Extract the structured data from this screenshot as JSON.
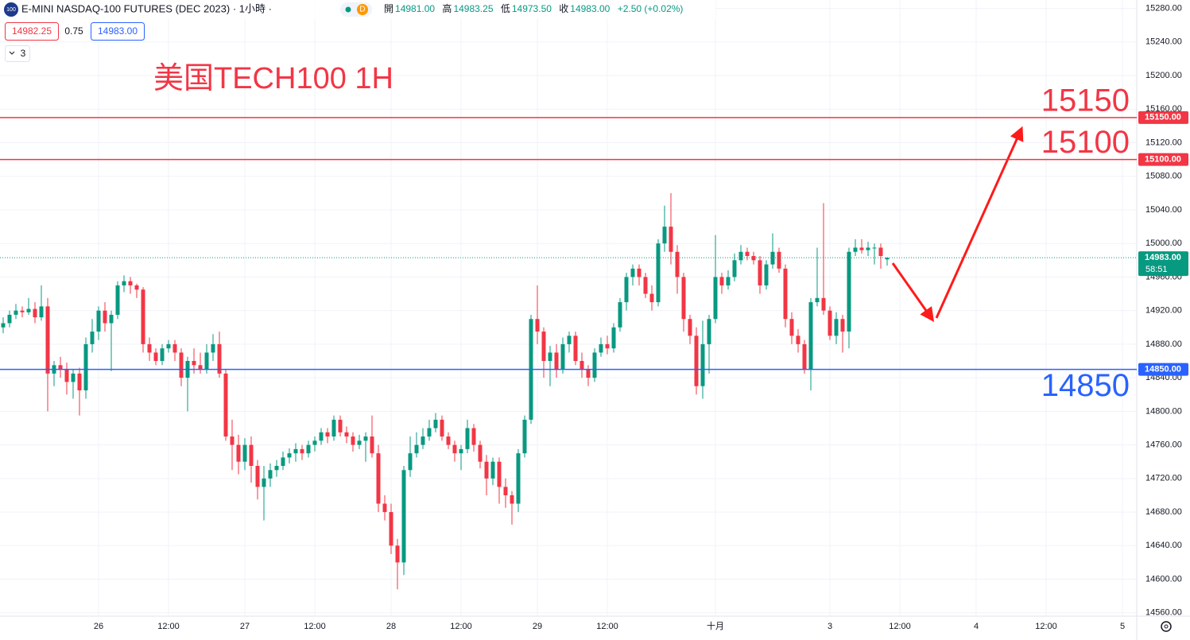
{
  "toolbar": {
    "icon": "100",
    "title": "E-MINI NASDAQ-100 FUTURES (DEC 2023) · 1小時 ·",
    "badge": "D",
    "ohlc": [
      {
        "label": "開",
        "value": "14981.00"
      },
      {
        "label": "高",
        "value": "14983.25"
      },
      {
        "label": "低",
        "value": "14973.50"
      },
      {
        "label": "收",
        "value": "14983.00"
      }
    ],
    "change": "+2.50 (+0.02%)",
    "bid": "14982.25",
    "spread": "0.75",
    "ask": "14983.00",
    "indicators": "3"
  },
  "chart_data": {
    "type": "candlestick",
    "title": "美国TECH100 1H",
    "up_color": "#089981",
    "down_color": "#f23645",
    "grid": true,
    "xlim": [
      -0.5,
      178.25
    ],
    "ylim": [
      14556,
      15290
    ],
    "xticks": [
      {
        "value": 15,
        "label": "26"
      },
      {
        "value": 26,
        "label": "12:00"
      },
      {
        "value": 38,
        "label": "27"
      },
      {
        "value": 49,
        "label": "12:00"
      },
      {
        "value": 61,
        "label": "28"
      },
      {
        "value": 72,
        "label": "12:00"
      },
      {
        "value": 84,
        "label": "29"
      },
      {
        "value": 95,
        "label": "12:00"
      },
      {
        "value": 112,
        "label": "十月"
      },
      {
        "value": 130,
        "label": "3"
      },
      {
        "value": 141,
        "label": "12:00"
      },
      {
        "value": 153,
        "label": "4"
      },
      {
        "value": 164,
        "label": "12:00"
      },
      {
        "value": 176,
        "label": "5"
      }
    ],
    "yticks": [
      {
        "value": 14560,
        "label": "14560.00"
      },
      {
        "value": 14600,
        "label": "14600.00"
      },
      {
        "value": 14640,
        "label": "14640.00"
      },
      {
        "value": 14680,
        "label": "14680.00"
      },
      {
        "value": 14720,
        "label": "14720.00"
      },
      {
        "value": 14760,
        "label": "14760.00"
      },
      {
        "value": 14800,
        "label": "14800.00"
      },
      {
        "value": 14840,
        "label": "14840.00"
      },
      {
        "value": 14880,
        "label": "14880.00"
      },
      {
        "value": 14920,
        "label": "14920.00"
      },
      {
        "value": 14960,
        "label": "14960.00"
      },
      {
        "value": 15000,
        "label": "15000.00"
      },
      {
        "value": 15040,
        "label": "15040.00"
      },
      {
        "value": 15080,
        "label": "15080.00"
      },
      {
        "value": 15120,
        "label": "15120.00"
      },
      {
        "value": 15160,
        "label": "15160.00"
      },
      {
        "value": 15200,
        "label": "15200.00"
      },
      {
        "value": 15240,
        "label": "15240.00"
      },
      {
        "value": 15280,
        "label": "15280.00"
      }
    ],
    "hlines": [
      {
        "value": 15150,
        "label": "15150",
        "axis_label": "15150.00",
        "color": "#f23645"
      },
      {
        "value": 15100,
        "label": "15100",
        "axis_label": "15100.00",
        "color": "#f23645"
      },
      {
        "value": 14850,
        "label": "14850",
        "axis_label": "14850.00",
        "color": "#2962ff"
      }
    ],
    "last_price": {
      "value": 14983,
      "label": "14983.00",
      "countdown": "58:51",
      "color": "#089981"
    },
    "ohlc": [
      [
        14900,
        14912,
        14893,
        14905
      ],
      [
        14905,
        14920,
        14900,
        14915
      ],
      [
        14915,
        14928,
        14910,
        14920
      ],
      [
        14920,
        14925,
        14912,
        14918
      ],
      [
        14918,
        14935,
        14915,
        14922
      ],
      [
        14922,
        14930,
        14905,
        14912
      ],
      [
        14912,
        14950,
        14908,
        14925
      ],
      [
        14925,
        14935,
        14800,
        14845
      ],
      [
        14845,
        14860,
        14830,
        14855
      ],
      [
        14855,
        14865,
        14840,
        14850
      ],
      [
        14850,
        14858,
        14820,
        14835
      ],
      [
        14835,
        14850,
        14815,
        14845
      ],
      [
        14845,
        14852,
        14795,
        14825
      ],
      [
        14825,
        14888,
        14815,
        14880
      ],
      [
        14880,
        14910,
        14870,
        14895
      ],
      [
        14895,
        14925,
        14885,
        14920
      ],
      [
        14920,
        14930,
        14895,
        14905
      ],
      [
        14905,
        14920,
        14848,
        14915
      ],
      [
        14915,
        14955,
        14910,
        14950
      ],
      [
        14950,
        14962,
        14942,
        14955
      ],
      [
        14955,
        14960,
        14940,
        14950
      ],
      [
        14950,
        14952,
        14935,
        14945
      ],
      [
        14945,
        14948,
        14870,
        14880
      ],
      [
        14880,
        14888,
        14860,
        14870
      ],
      [
        14870,
        14875,
        14855,
        14860
      ],
      [
        14860,
        14880,
        14855,
        14875
      ],
      [
        14875,
        14885,
        14870,
        14880
      ],
      [
        14880,
        14885,
        14860,
        14870
      ],
      [
        14870,
        14875,
        14830,
        14840
      ],
      [
        14840,
        14865,
        14800,
        14860
      ],
      [
        14860,
        14875,
        14845,
        14855
      ],
      [
        14855,
        14870,
        14845,
        14850
      ],
      [
        14850,
        14880,
        14845,
        14870
      ],
      [
        14870,
        14892,
        14860,
        14880
      ],
      [
        14880,
        14895,
        14840,
        14845
      ],
      [
        14845,
        14850,
        14765,
        14770
      ],
      [
        14770,
        14790,
        14730,
        14760
      ],
      [
        14760,
        14772,
        14725,
        14740
      ],
      [
        14740,
        14768,
        14730,
        14760
      ],
      [
        14760,
        14770,
        14715,
        14735
      ],
      [
        14735,
        14742,
        14695,
        14710
      ],
      [
        14710,
        14735,
        14670,
        14720
      ],
      [
        14720,
        14738,
        14710,
        14730
      ],
      [
        14730,
        14742,
        14722,
        14735
      ],
      [
        14735,
        14752,
        14730,
        14745
      ],
      [
        14745,
        14756,
        14738,
        14750
      ],
      [
        14750,
        14762,
        14740,
        14755
      ],
      [
        14755,
        14760,
        14742,
        14750
      ],
      [
        14750,
        14765,
        14745,
        14760
      ],
      [
        14760,
        14770,
        14752,
        14765
      ],
      [
        14765,
        14780,
        14760,
        14775
      ],
      [
        14775,
        14780,
        14762,
        14770
      ],
      [
        14770,
        14795,
        14765,
        14790
      ],
      [
        14790,
        14795,
        14770,
        14775
      ],
      [
        14775,
        14782,
        14762,
        14770
      ],
      [
        14770,
        14775,
        14752,
        14760
      ],
      [
        14760,
        14772,
        14755,
        14765
      ],
      [
        14765,
        14775,
        14740,
        14770
      ],
      [
        14770,
        14795,
        14745,
        14750
      ],
      [
        14750,
        14760,
        14680,
        14690
      ],
      [
        14690,
        14700,
        14670,
        14680
      ],
      [
        14680,
        14690,
        14630,
        14640
      ],
      [
        14640,
        14648,
        14588,
        14620
      ],
      [
        14620,
        14735,
        14605,
        14730
      ],
      [
        14730,
        14770,
        14722,
        14750
      ],
      [
        14750,
        14775,
        14745,
        14760
      ],
      [
        14760,
        14780,
        14755,
        14770
      ],
      [
        14770,
        14790,
        14765,
        14780
      ],
      [
        14780,
        14798,
        14775,
        14790
      ],
      [
        14790,
        14795,
        14765,
        14770
      ],
      [
        14770,
        14775,
        14755,
        14760
      ],
      [
        14760,
        14765,
        14740,
        14750
      ],
      [
        14750,
        14760,
        14730,
        14755
      ],
      [
        14755,
        14790,
        14750,
        14780
      ],
      [
        14780,
        14785,
        14752,
        14760
      ],
      [
        14760,
        14765,
        14732,
        14740
      ],
      [
        14740,
        14748,
        14700,
        14720
      ],
      [
        14720,
        14745,
        14712,
        14740
      ],
      [
        14740,
        14745,
        14690,
        14710
      ],
      [
        14710,
        14720,
        14685,
        14700
      ],
      [
        14700,
        14705,
        14665,
        14690
      ],
      [
        14690,
        14755,
        14680,
        14750
      ],
      [
        14750,
        14795,
        14745,
        14790
      ],
      [
        14790,
        14915,
        14785,
        14910
      ],
      [
        14910,
        14950,
        14880,
        14895
      ],
      [
        14895,
        14900,
        14840,
        14860
      ],
      [
        14860,
        14878,
        14830,
        14870
      ],
      [
        14870,
        14880,
        14840,
        14850
      ],
      [
        14850,
        14888,
        14845,
        14880
      ],
      [
        14880,
        14895,
        14870,
        14890
      ],
      [
        14890,
        14895,
        14855,
        14860
      ],
      [
        14860,
        14870,
        14840,
        14850
      ],
      [
        14850,
        14855,
        14830,
        14840
      ],
      [
        14840,
        14875,
        14835,
        14870
      ],
      [
        14870,
        14888,
        14865,
        14880
      ],
      [
        14880,
        14890,
        14868,
        14875
      ],
      [
        14875,
        14905,
        14870,
        14900
      ],
      [
        14900,
        14935,
        14895,
        14930
      ],
      [
        14930,
        14965,
        14920,
        14960
      ],
      [
        14960,
        14975,
        14950,
        14970
      ],
      [
        14970,
        14975,
        14950,
        14960
      ],
      [
        14960,
        14965,
        14935,
        14940
      ],
      [
        14940,
        14950,
        14920,
        14930
      ],
      [
        14930,
        15005,
        14925,
        15000
      ],
      [
        15000,
        15045,
        14990,
        15020
      ],
      [
        15020,
        15060,
        14975,
        14990
      ],
      [
        14990,
        14998,
        14940,
        14960
      ],
      [
        14960,
        14965,
        14895,
        14910
      ],
      [
        14910,
        14915,
        14880,
        14890
      ],
      [
        14890,
        14900,
        14820,
        14830
      ],
      [
        14830,
        14908,
        14815,
        14880
      ],
      [
        14880,
        14915,
        14845,
        14910
      ],
      [
        14910,
        15010,
        14905,
        14960
      ],
      [
        14960,
        14965,
        14940,
        14950
      ],
      [
        14950,
        14968,
        14945,
        14960
      ],
      [
        14960,
        14988,
        14955,
        14980
      ],
      [
        14980,
        14998,
        14975,
        14990
      ],
      [
        14990,
        14995,
        14980,
        14985
      ],
      [
        14985,
        14990,
        14975,
        14980
      ],
      [
        14980,
        14985,
        14940,
        14950
      ],
      [
        14950,
        14980,
        14945,
        14975
      ],
      [
        14975,
        15012,
        14970,
        14990
      ],
      [
        14990,
        14995,
        14965,
        14970
      ],
      [
        14970,
        14975,
        14900,
        14910
      ],
      [
        14910,
        14918,
        14880,
        14890
      ],
      [
        14890,
        14898,
        14870,
        14880
      ],
      [
        14880,
        14885,
        14845,
        14850
      ],
      [
        14850,
        14935,
        14825,
        14930
      ],
      [
        14930,
        14995,
        14925,
        14935
      ],
      [
        14935,
        15048,
        14915,
        14920
      ],
      [
        14920,
        14925,
        14885,
        14890
      ],
      [
        14890,
        14918,
        14880,
        14910
      ],
      [
        14910,
        14915,
        14870,
        14895
      ],
      [
        14895,
        14995,
        14875,
        14990
      ],
      [
        14990,
        15005,
        14985,
        14995
      ],
      [
        14995,
        15005,
        14988,
        14992
      ],
      [
        14992,
        15002,
        14985,
        14995
      ],
      [
        14995,
        15000,
        14975,
        14995
      ],
      [
        14995,
        15000,
        14970,
        14985
      ],
      [
        14981,
        14983.25,
        14973.5,
        14983
      ]
    ]
  }
}
